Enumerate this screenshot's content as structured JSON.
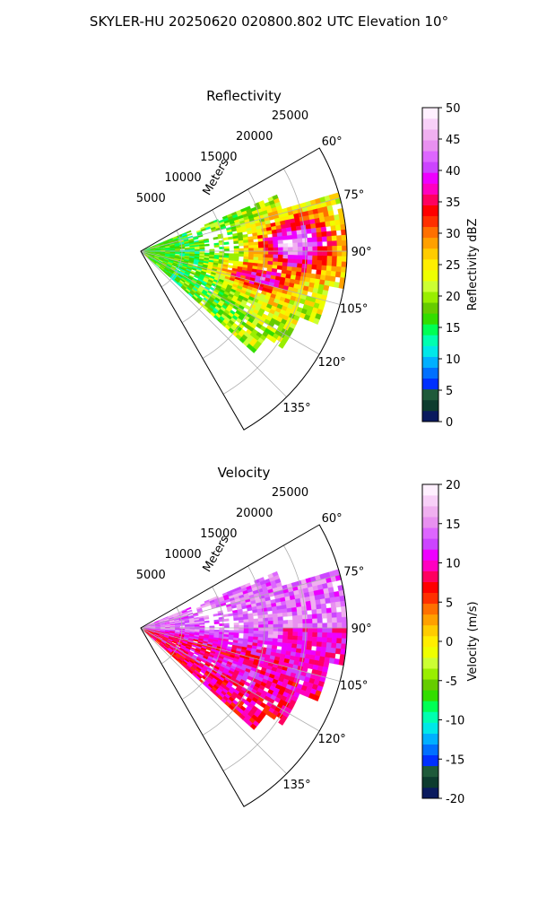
{
  "suptitle": "SKYLER-HU  20250620  020800.802 UTC Elevation 10°",
  "chart_data": [
    {
      "type": "heatmap",
      "title": "Reflectivity",
      "radial_label": "Meters",
      "r_ticks": [
        5000,
        10000,
        15000,
        20000,
        25000
      ],
      "r_max": 25000,
      "theta_range_deg": [
        60,
        150
      ],
      "theta_ticks": [
        60,
        75,
        90,
        105,
        120,
        135
      ],
      "theta_tick_labels": [
        "60°",
        "75°",
        "90°",
        "105°",
        "120°",
        "135°"
      ],
      "grid": true,
      "colorbar": {
        "label": "Reflectivity dBZ",
        "min": 0,
        "max": 50,
        "ticks": [
          0,
          5,
          10,
          15,
          20,
          25,
          30,
          35,
          40,
          45,
          50
        ],
        "colors": [
          "#0a1a5e",
          "#0d3b2e",
          "#1f5a3a",
          "#0030ff",
          "#0070ff",
          "#00b0ff",
          "#00e8e8",
          "#00ffb0",
          "#00ff55",
          "#33dd00",
          "#66cc00",
          "#99ee00",
          "#ccff33",
          "#eeff00",
          "#ffee00",
          "#ffcc00",
          "#ffa000",
          "#ff7000",
          "#ff3000",
          "#ff0000",
          "#ff0060",
          "#ff00c0",
          "#ee00ff",
          "#cc44ff",
          "#dd66ff",
          "#e890f0",
          "#f0b0f0",
          "#f8d0f8",
          "#fff0ff"
        ]
      }
    },
    {
      "type": "heatmap",
      "title": "Velocity",
      "radial_label": "Meters",
      "r_ticks": [
        5000,
        10000,
        15000,
        20000,
        25000
      ],
      "r_max": 25000,
      "theta_range_deg": [
        60,
        150
      ],
      "theta_ticks": [
        60,
        75,
        90,
        105,
        120,
        135
      ],
      "theta_tick_labels": [
        "60°",
        "75°",
        "90°",
        "105°",
        "120°",
        "135°"
      ],
      "grid": true,
      "colorbar": {
        "label": "Velocity (m/s)",
        "min": -20,
        "max": 20,
        "ticks": [
          -20,
          -15,
          -10,
          -5,
          0,
          5,
          10,
          15,
          20
        ],
        "colors": [
          "#0a1a5e",
          "#0d3b2e",
          "#1f5a3a",
          "#0030ff",
          "#0070ff",
          "#00b0ff",
          "#00e8e8",
          "#00ffb0",
          "#00ff55",
          "#33dd00",
          "#66cc00",
          "#99ee00",
          "#ccff33",
          "#eeff00",
          "#ffee00",
          "#ffcc00",
          "#ffa000",
          "#ff7000",
          "#ff3000",
          "#ff0000",
          "#ff0060",
          "#ff00c0",
          "#ee00ff",
          "#cc44ff",
          "#dd66ff",
          "#e890f0",
          "#f0b0f0",
          "#f8d0f8",
          "#fff0ff"
        ]
      }
    }
  ]
}
